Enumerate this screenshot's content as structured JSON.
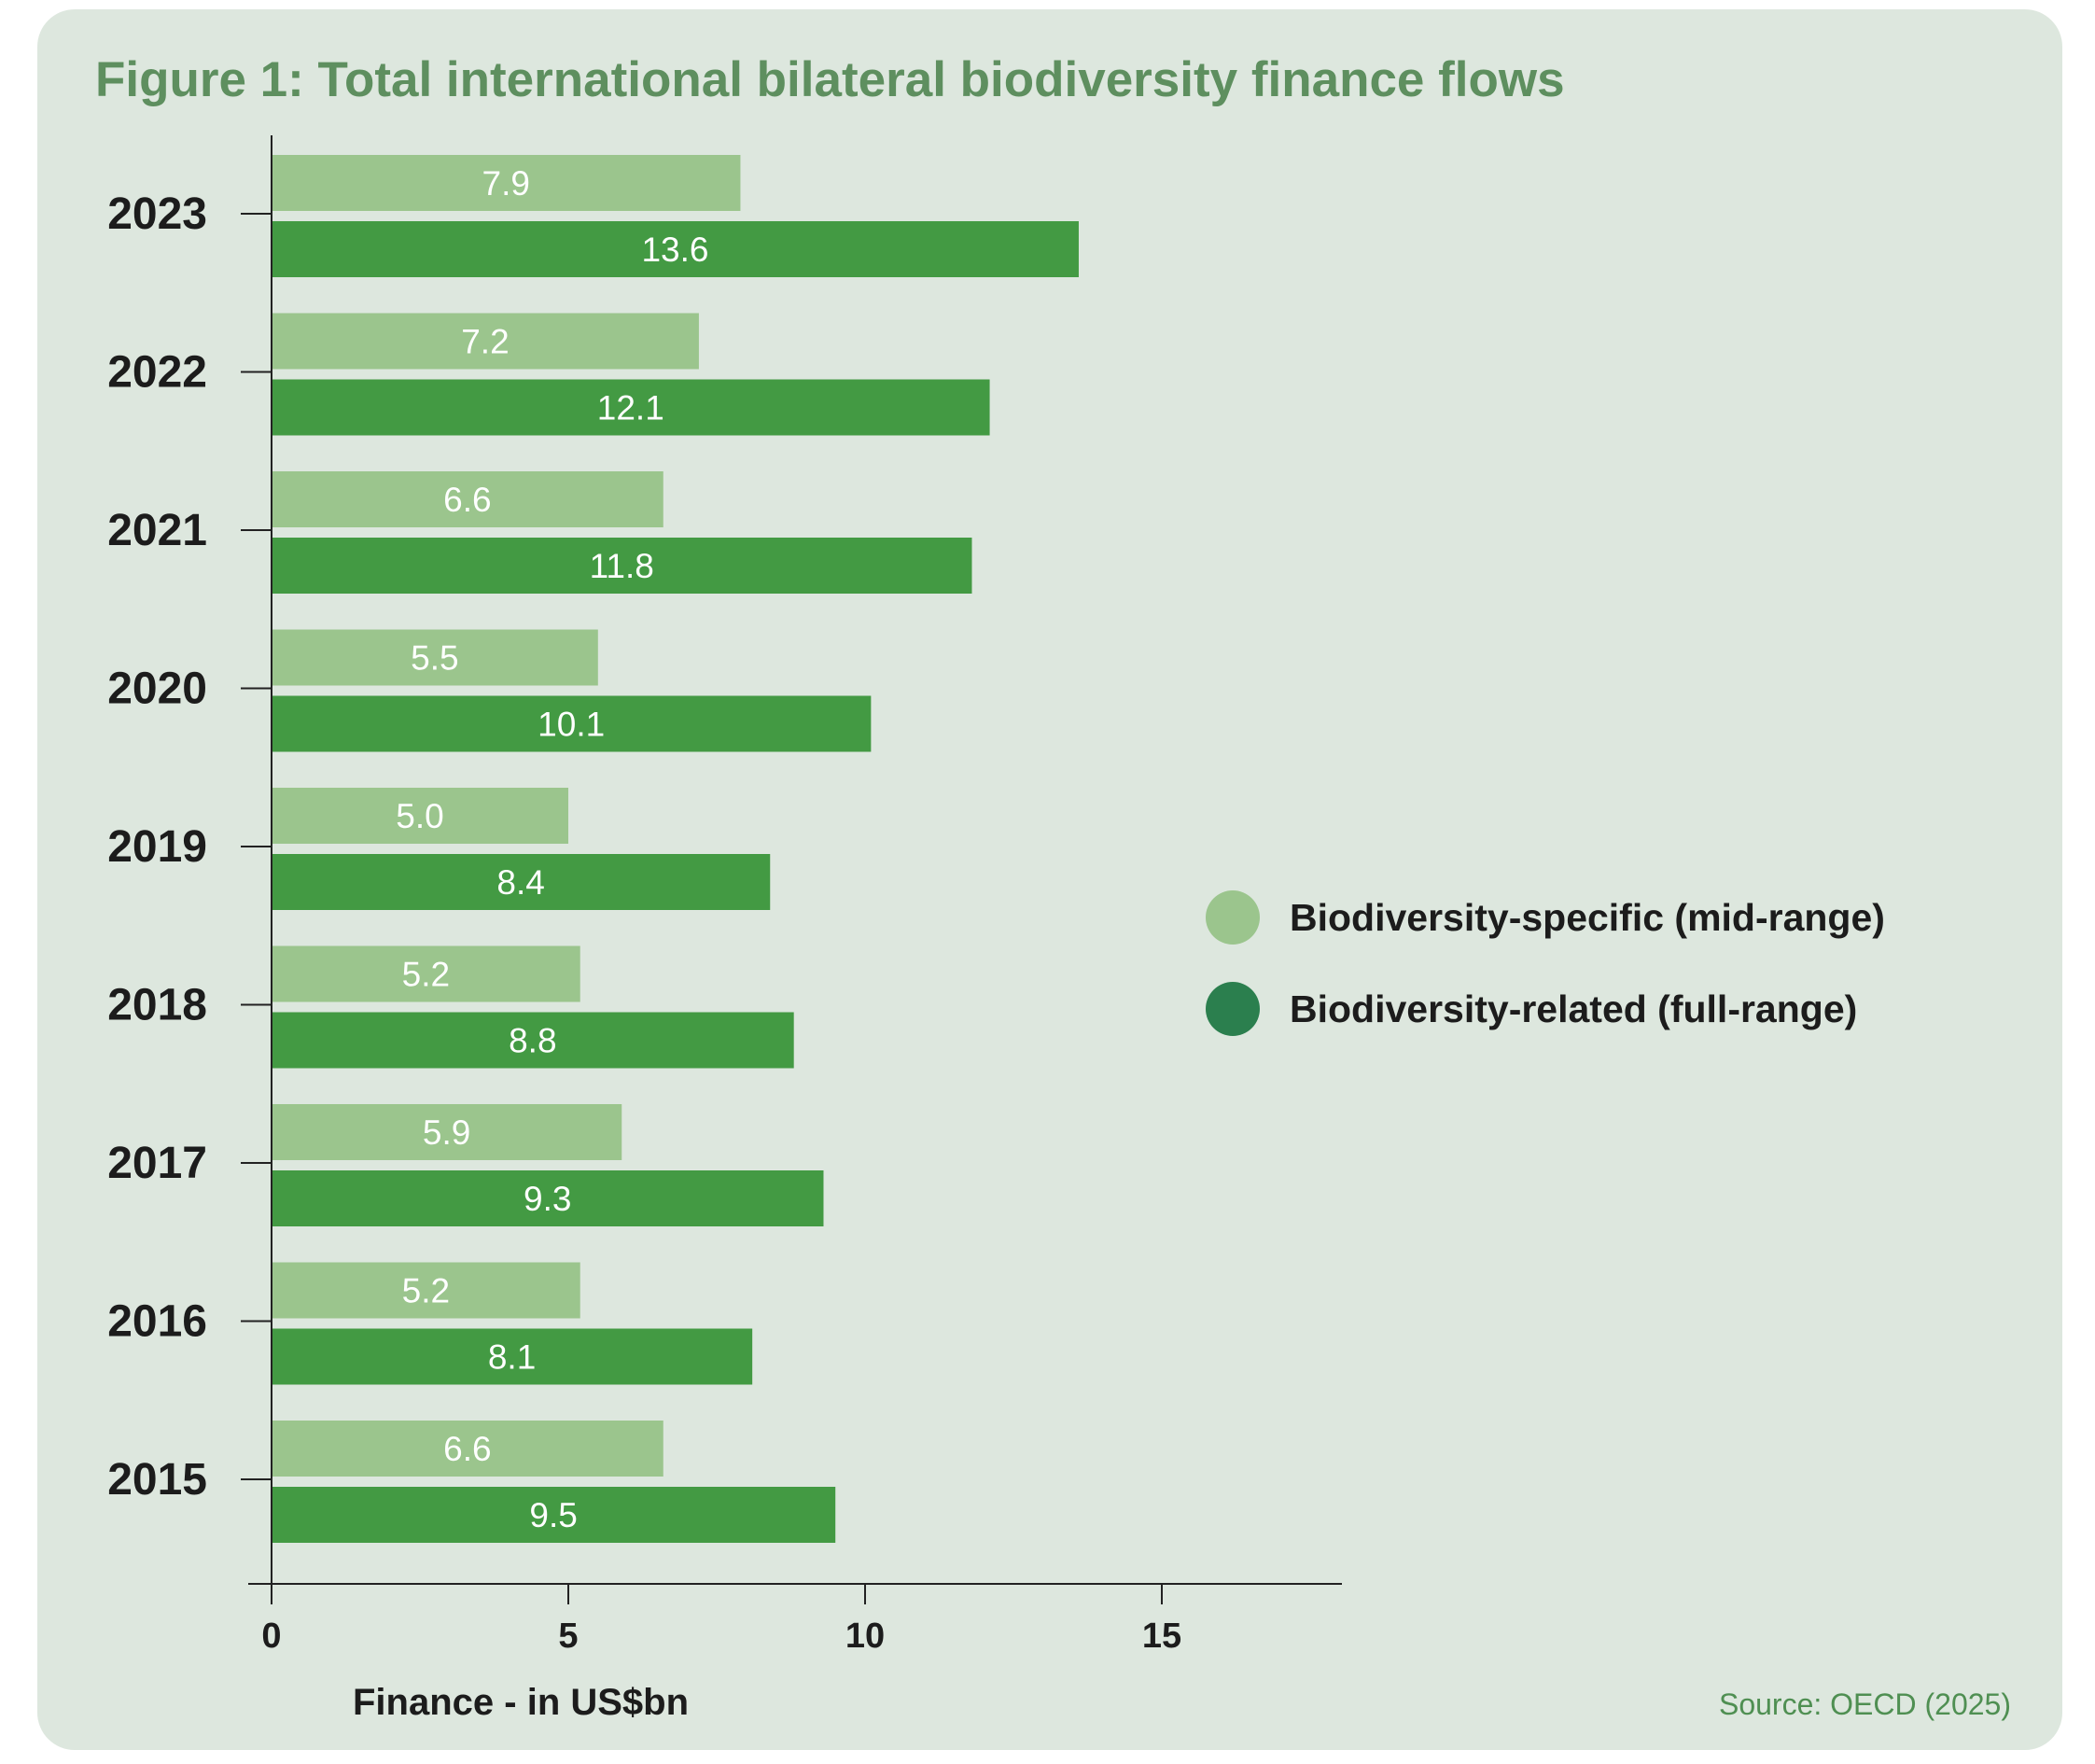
{
  "figure": {
    "title": "Figure 1: Total international bilateral biodiversity finance flows",
    "source": "Source: OECD (2025)"
  },
  "colors": {
    "background": "#dde7de",
    "specific": "#9bc58d",
    "related": "#439a43",
    "legend_related_dot": "#2b7f4e",
    "title": "#5e8f5f"
  },
  "legend": {
    "items": [
      {
        "label": "Biodiversity-specific (mid-range)",
        "color": "#9bc58d"
      },
      {
        "label": "Biodiversity-related (full-range)",
        "color": "#2b7f4e"
      }
    ]
  },
  "chart_data": {
    "type": "bar",
    "orientation": "horizontal",
    "title": "Figure 1: Total international bilateral biodiversity finance flows",
    "xlabel": "Finance - in US$bn",
    "ylabel": "",
    "categories": [
      "2023",
      "2022",
      "2021",
      "2020",
      "2019",
      "2018",
      "2017",
      "2016",
      "2015"
    ],
    "series": [
      {
        "name": "Biodiversity-specific (mid-range)",
        "values": [
          7.9,
          7.2,
          6.6,
          5.5,
          5.0,
          5.2,
          5.9,
          5.2,
          6.6
        ],
        "labels": [
          "7.9",
          "7.2",
          "6.6",
          "5.5",
          "5.0",
          "5.2",
          "5.9",
          "5.2",
          "6.6"
        ]
      },
      {
        "name": "Biodiversity-related (full-range)",
        "values": [
          13.6,
          12.1,
          11.8,
          10.1,
          8.4,
          8.8,
          9.3,
          8.1,
          9.5
        ],
        "labels": [
          "13.6",
          "12.1",
          "11.8",
          "10.1",
          "8.4",
          "8.8",
          "9.3",
          "8.1",
          "9.5"
        ]
      }
    ],
    "xlim": [
      0,
      18
    ],
    "xticks": [
      0,
      5,
      10,
      15
    ],
    "xtick_labels": [
      "0",
      "5",
      "10",
      "15"
    ],
    "grid": false,
    "legend_position": "right"
  }
}
